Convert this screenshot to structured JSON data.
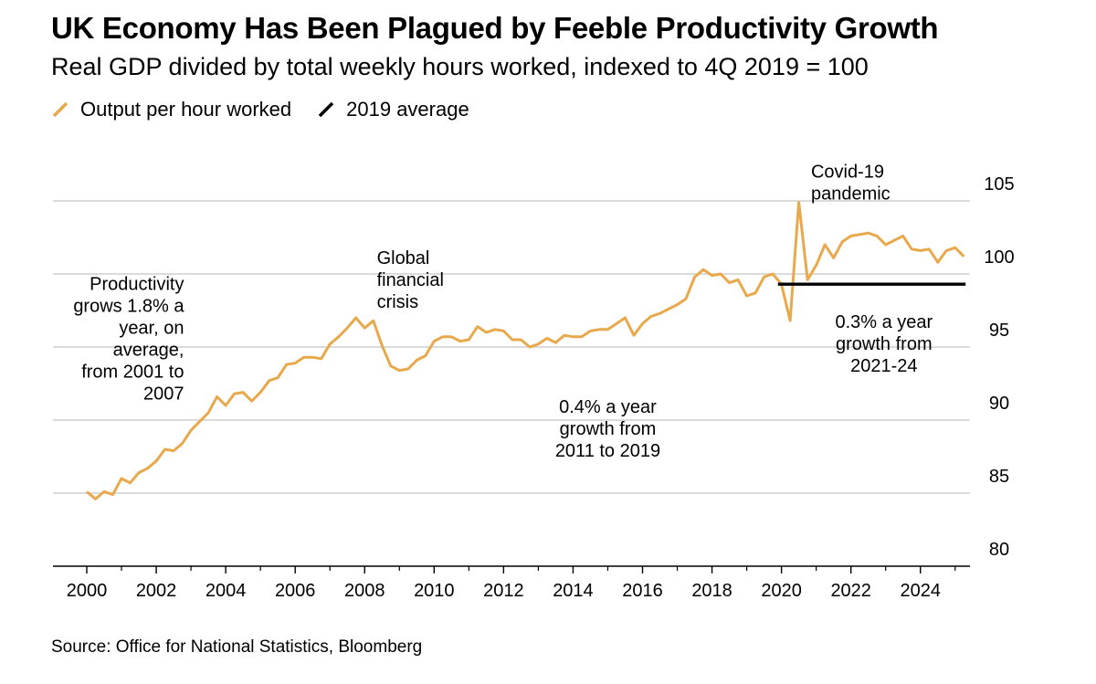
{
  "header": {
    "title": "UK Economy Has Been Plagued by Feeble Productivity Growth",
    "subtitle": "Real GDP divided by total weekly hours worked, indexed to 4Q 2019 = 100"
  },
  "legend": [
    {
      "label": "Output per hour worked",
      "color": "#E8A84C"
    },
    {
      "label": "2019 average",
      "color": "#000000"
    }
  ],
  "source": "Source: Office for National Statistics, Bloomberg",
  "chart_data": {
    "type": "line",
    "title": "UK Economy Has Been Plagued by Feeble Productivity Growth",
    "subtitle": "Real GDP divided by total weekly hours worked, indexed to 4Q 2019 = 100",
    "xlabel": "",
    "ylabel": "",
    "xlim": [
      2000,
      2025.4
    ],
    "ylim": [
      80,
      105
    ],
    "yticks": [
      80,
      85,
      90,
      95,
      100,
      105
    ],
    "xticks": [
      "2000",
      "2002",
      "2004",
      "2006",
      "2008",
      "2010",
      "2012",
      "2014",
      "2016",
      "2018",
      "2020",
      "2022",
      "2024"
    ],
    "grid": true,
    "legend_position": "top-left",
    "series": [
      {
        "name": "Output per hour worked",
        "color": "#E8A84C",
        "x": [
          2000.0,
          2000.25,
          2000.5,
          2000.75,
          2001.0,
          2001.25,
          2001.5,
          2001.75,
          2002.0,
          2002.25,
          2002.5,
          2002.75,
          2003.0,
          2003.25,
          2003.5,
          2003.75,
          2004.0,
          2004.25,
          2004.5,
          2004.75,
          2005.0,
          2005.25,
          2005.5,
          2005.75,
          2006.0,
          2006.25,
          2006.5,
          2006.75,
          2007.0,
          2007.25,
          2007.5,
          2007.75,
          2008.0,
          2008.25,
          2008.5,
          2008.75,
          2009.0,
          2009.25,
          2009.5,
          2009.75,
          2010.0,
          2010.25,
          2010.5,
          2010.75,
          2011.0,
          2011.25,
          2011.5,
          2011.75,
          2012.0,
          2012.25,
          2012.5,
          2012.75,
          2013.0,
          2013.25,
          2013.5,
          2013.75,
          2014.0,
          2014.25,
          2014.5,
          2014.75,
          2015.0,
          2015.25,
          2015.5,
          2015.75,
          2016.0,
          2016.25,
          2016.5,
          2016.75,
          2017.0,
          2017.25,
          2017.5,
          2017.75,
          2018.0,
          2018.25,
          2018.5,
          2018.75,
          2019.0,
          2019.25,
          2019.5,
          2019.75,
          2020.0,
          2020.25,
          2020.5,
          2020.75,
          2021.0,
          2021.25,
          2021.5,
          2021.75,
          2022.0,
          2022.25,
          2022.5,
          2022.75,
          2023.0,
          2023.25,
          2023.5,
          2023.75,
          2024.0,
          2024.25,
          2024.5,
          2024.75,
          2025.0,
          2025.25
        ],
        "values": [
          85.1,
          84.6,
          85.1,
          84.9,
          86.0,
          85.7,
          86.4,
          86.7,
          87.2,
          88.0,
          87.9,
          88.4,
          89.3,
          89.9,
          90.5,
          91.6,
          91.0,
          91.8,
          91.9,
          91.3,
          91.9,
          92.7,
          92.9,
          93.8,
          93.9,
          94.3,
          94.3,
          94.2,
          95.2,
          95.7,
          96.3,
          97.0,
          96.3,
          96.8,
          95.1,
          93.7,
          93.4,
          93.5,
          94.1,
          94.4,
          95.4,
          95.7,
          95.7,
          95.4,
          95.5,
          96.4,
          96.0,
          96.2,
          96.1,
          95.5,
          95.5,
          95.0,
          95.2,
          95.6,
          95.3,
          95.8,
          95.7,
          95.7,
          96.1,
          96.2,
          96.2,
          96.6,
          97.0,
          95.8,
          96.6,
          97.1,
          97.3,
          97.6,
          97.9,
          98.3,
          99.8,
          100.3,
          99.9,
          100.0,
          99.4,
          99.6,
          98.5,
          98.7,
          99.8,
          100.0,
          99.3,
          96.8,
          104.9,
          99.6,
          100.6,
          102.0,
          101.1,
          102.2,
          102.6,
          102.7,
          102.8,
          102.6,
          102.0,
          102.3,
          102.6,
          101.7,
          101.6,
          101.7,
          100.8,
          101.6,
          101.8,
          101.2
        ]
      },
      {
        "name": "2019 average",
        "color": "#000000",
        "x": [
          2019.9,
          2025.3
        ],
        "values": [
          99.3,
          99.3
        ]
      }
    ],
    "annotations": [
      {
        "lines": [
          "Productivity",
          "grows 1.8% a",
          "year, on",
          "average,",
          "from 2001 to",
          "2007"
        ],
        "x": 2002.8,
        "y": 98.9,
        "anchor": "end"
      },
      {
        "lines": [
          "Global",
          "financial",
          "crisis"
        ],
        "x": 2008.35,
        "y": 100.7,
        "anchor": "start"
      },
      {
        "lines": [
          "0.4% a year",
          "growth from",
          "2011 to 2019"
        ],
        "x": 2015.0,
        "y": 90.5,
        "anchor": "middle"
      },
      {
        "lines": [
          "Covid-19",
          "pandemic"
        ],
        "x": 2020.85,
        "y": 106.6,
        "anchor": "start"
      },
      {
        "lines": [
          "0.3% a year",
          "growth from",
          "2021-24"
        ],
        "x": 2022.95,
        "y": 96.3,
        "anchor": "middle"
      }
    ]
  }
}
